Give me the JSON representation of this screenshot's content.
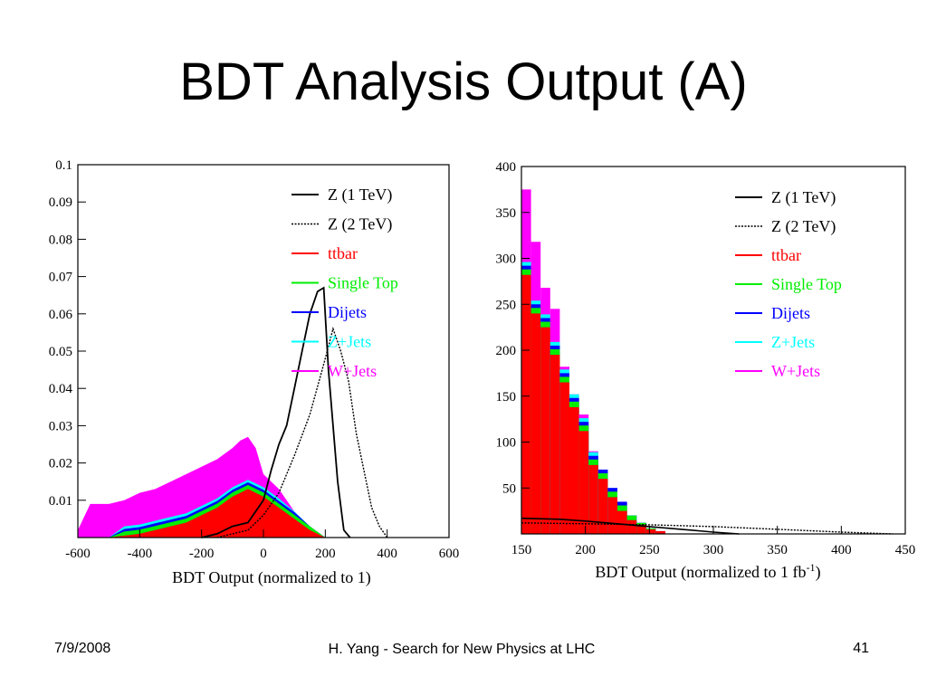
{
  "slide": {
    "title": "BDT Analysis Output (A)",
    "date": "7/9/2008",
    "footer": "H. Yang - Search for New Physics at LHC",
    "page": "41"
  },
  "colors": {
    "Z (1 TeV)": "#000000",
    "Z (2 TeV)": "#000000",
    "ttbar": "#ff0000",
    "Single Top": "#00ee00",
    "Dijets": "#0000ff",
    "Z+Jets": "#00ffff",
    "W+Jets": "#ff00ff"
  },
  "chart_data": [
    {
      "type": "histogram",
      "title": "",
      "xlabel": "BDT Output (normalized to 1)",
      "ylabel": "",
      "xlim": [
        -600,
        600
      ],
      "ylim": [
        0,
        0.1
      ],
      "xticks": [
        -600,
        -400,
        -200,
        0,
        200,
        400,
        600
      ],
      "yticks": [
        0.01,
        0.02,
        0.03,
        0.04,
        0.05,
        0.06,
        0.07,
        0.08,
        0.09,
        0.1
      ],
      "legend_position": "top-right",
      "grid": false,
      "legend": [
        "Z (1 TeV)",
        "Z (2 TeV)",
        "ttbar",
        "Single Top",
        "Dijets",
        "Z+Jets",
        "W+Jets"
      ],
      "stacked_background_points": [
        {
          "x": -600,
          "ttbar": 0.0,
          "wjets": 0.002
        },
        {
          "x": -560,
          "ttbar": 0.0,
          "wjets": 0.009
        },
        {
          "x": -500,
          "ttbar": 0.0,
          "wjets": 0.009
        },
        {
          "x": -450,
          "ttbar": 0.0005,
          "wjets": 0.01
        },
        {
          "x": -400,
          "ttbar": 0.001,
          "wjets": 0.012
        },
        {
          "x": -350,
          "ttbar": 0.002,
          "wjets": 0.013
        },
        {
          "x": -300,
          "ttbar": 0.003,
          "wjets": 0.015
        },
        {
          "x": -250,
          "ttbar": 0.004,
          "wjets": 0.017
        },
        {
          "x": -200,
          "ttbar": 0.006,
          "wjets": 0.019
        },
        {
          "x": -150,
          "ttbar": 0.008,
          "wjets": 0.021
        },
        {
          "x": -100,
          "ttbar": 0.011,
          "wjets": 0.024
        },
        {
          "x": -75,
          "ttbar": 0.012,
          "wjets": 0.026
        },
        {
          "x": -50,
          "ttbar": 0.013,
          "wjets": 0.027
        },
        {
          "x": -25,
          "ttbar": 0.012,
          "wjets": 0.024
        },
        {
          "x": 0,
          "ttbar": 0.011,
          "wjets": 0.017
        },
        {
          "x": 50,
          "ttbar": 0.008,
          "wjets": 0.013
        },
        {
          "x": 100,
          "ttbar": 0.005,
          "wjets": 0.007
        },
        {
          "x": 150,
          "ttbar": 0.002,
          "wjets": 0.003
        },
        {
          "x": 200,
          "ttbar": 0.0,
          "wjets": 0.0
        }
      ],
      "signal_z1": [
        {
          "x": -200,
          "y": 0.0
        },
        {
          "x": -150,
          "y": 0.001
        },
        {
          "x": -100,
          "y": 0.003
        },
        {
          "x": -50,
          "y": 0.004
        },
        {
          "x": 0,
          "y": 0.01
        },
        {
          "x": 25,
          "y": 0.018
        },
        {
          "x": 50,
          "y": 0.025
        },
        {
          "x": 75,
          "y": 0.03
        },
        {
          "x": 100,
          "y": 0.04
        },
        {
          "x": 125,
          "y": 0.05
        },
        {
          "x": 150,
          "y": 0.06
        },
        {
          "x": 175,
          "y": 0.066
        },
        {
          "x": 195,
          "y": 0.067
        },
        {
          "x": 210,
          "y": 0.045
        },
        {
          "x": 225,
          "y": 0.03
        },
        {
          "x": 240,
          "y": 0.015
        },
        {
          "x": 260,
          "y": 0.002
        },
        {
          "x": 280,
          "y": 0.0
        }
      ],
      "signal_z2": [
        {
          "x": -150,
          "y": 0.0
        },
        {
          "x": -50,
          "y": 0.002
        },
        {
          "x": 0,
          "y": 0.006
        },
        {
          "x": 50,
          "y": 0.012
        },
        {
          "x": 100,
          "y": 0.022
        },
        {
          "x": 150,
          "y": 0.033
        },
        {
          "x": 200,
          "y": 0.048
        },
        {
          "x": 225,
          "y": 0.056
        },
        {
          "x": 250,
          "y": 0.05
        },
        {
          "x": 275,
          "y": 0.042
        },
        {
          "x": 300,
          "y": 0.028
        },
        {
          "x": 325,
          "y": 0.018
        },
        {
          "x": 350,
          "y": 0.008
        },
        {
          "x": 375,
          "y": 0.003
        },
        {
          "x": 400,
          "y": 0.0
        }
      ]
    },
    {
      "type": "histogram",
      "title": "",
      "xlabel": "BDT Output (normalized to 1 fb",
      "xlabel_sup": "-1",
      "xlabel_suffix": ")",
      "ylabel": "",
      "xlim": [
        150,
        450
      ],
      "ylim": [
        0,
        400
      ],
      "xticks": [
        150,
        200,
        250,
        300,
        350,
        400,
        450
      ],
      "yticks": [
        50,
        100,
        150,
        200,
        250,
        300,
        350,
        400
      ],
      "legend_position": "top-right",
      "grid": false,
      "legend": [
        "Z (1 TeV)",
        "Z (2 TeV)",
        "ttbar",
        "Single Top",
        "Dijets",
        "Z+Jets",
        "W+Jets"
      ],
      "bin_width": 7.5,
      "bins": [
        {
          "x": 150,
          "ttbar": 282,
          "total": 375
        },
        {
          "x": 157.5,
          "ttbar": 240,
          "total": 318
        },
        {
          "x": 165,
          "ttbar": 225,
          "total": 268
        },
        {
          "x": 172.5,
          "ttbar": 195,
          "total": 245
        },
        {
          "x": 180,
          "ttbar": 165,
          "total": 182
        },
        {
          "x": 187.5,
          "ttbar": 138,
          "total": 152
        },
        {
          "x": 195,
          "ttbar": 112,
          "total": 130
        },
        {
          "x": 202.5,
          "ttbar": 75,
          "total": 90
        },
        {
          "x": 210,
          "ttbar": 60,
          "total": 70
        },
        {
          "x": 217.5,
          "ttbar": 40,
          "total": 50
        },
        {
          "x": 225,
          "ttbar": 25,
          "total": 35
        },
        {
          "x": 232.5,
          "ttbar": 15,
          "total": 20
        },
        {
          "x": 240,
          "ttbar": 10,
          "total": 12
        },
        {
          "x": 247.5,
          "ttbar": 5,
          "total": 6
        },
        {
          "x": 255,
          "ttbar": 3,
          "total": 3
        }
      ],
      "signal_z1": [
        {
          "x": 150,
          "y": 17
        },
        {
          "x": 180,
          "y": 16
        },
        {
          "x": 200,
          "y": 14
        },
        {
          "x": 225,
          "y": 11
        },
        {
          "x": 250,
          "y": 8
        },
        {
          "x": 275,
          "y": 5
        },
        {
          "x": 300,
          "y": 2
        },
        {
          "x": 320,
          "y": 0
        }
      ],
      "signal_z2": [
        {
          "x": 150,
          "y": 12
        },
        {
          "x": 200,
          "y": 11
        },
        {
          "x": 250,
          "y": 10
        },
        {
          "x": 300,
          "y": 8
        },
        {
          "x": 350,
          "y": 5
        },
        {
          "x": 400,
          "y": 2
        },
        {
          "x": 440,
          "y": 0
        }
      ]
    }
  ]
}
